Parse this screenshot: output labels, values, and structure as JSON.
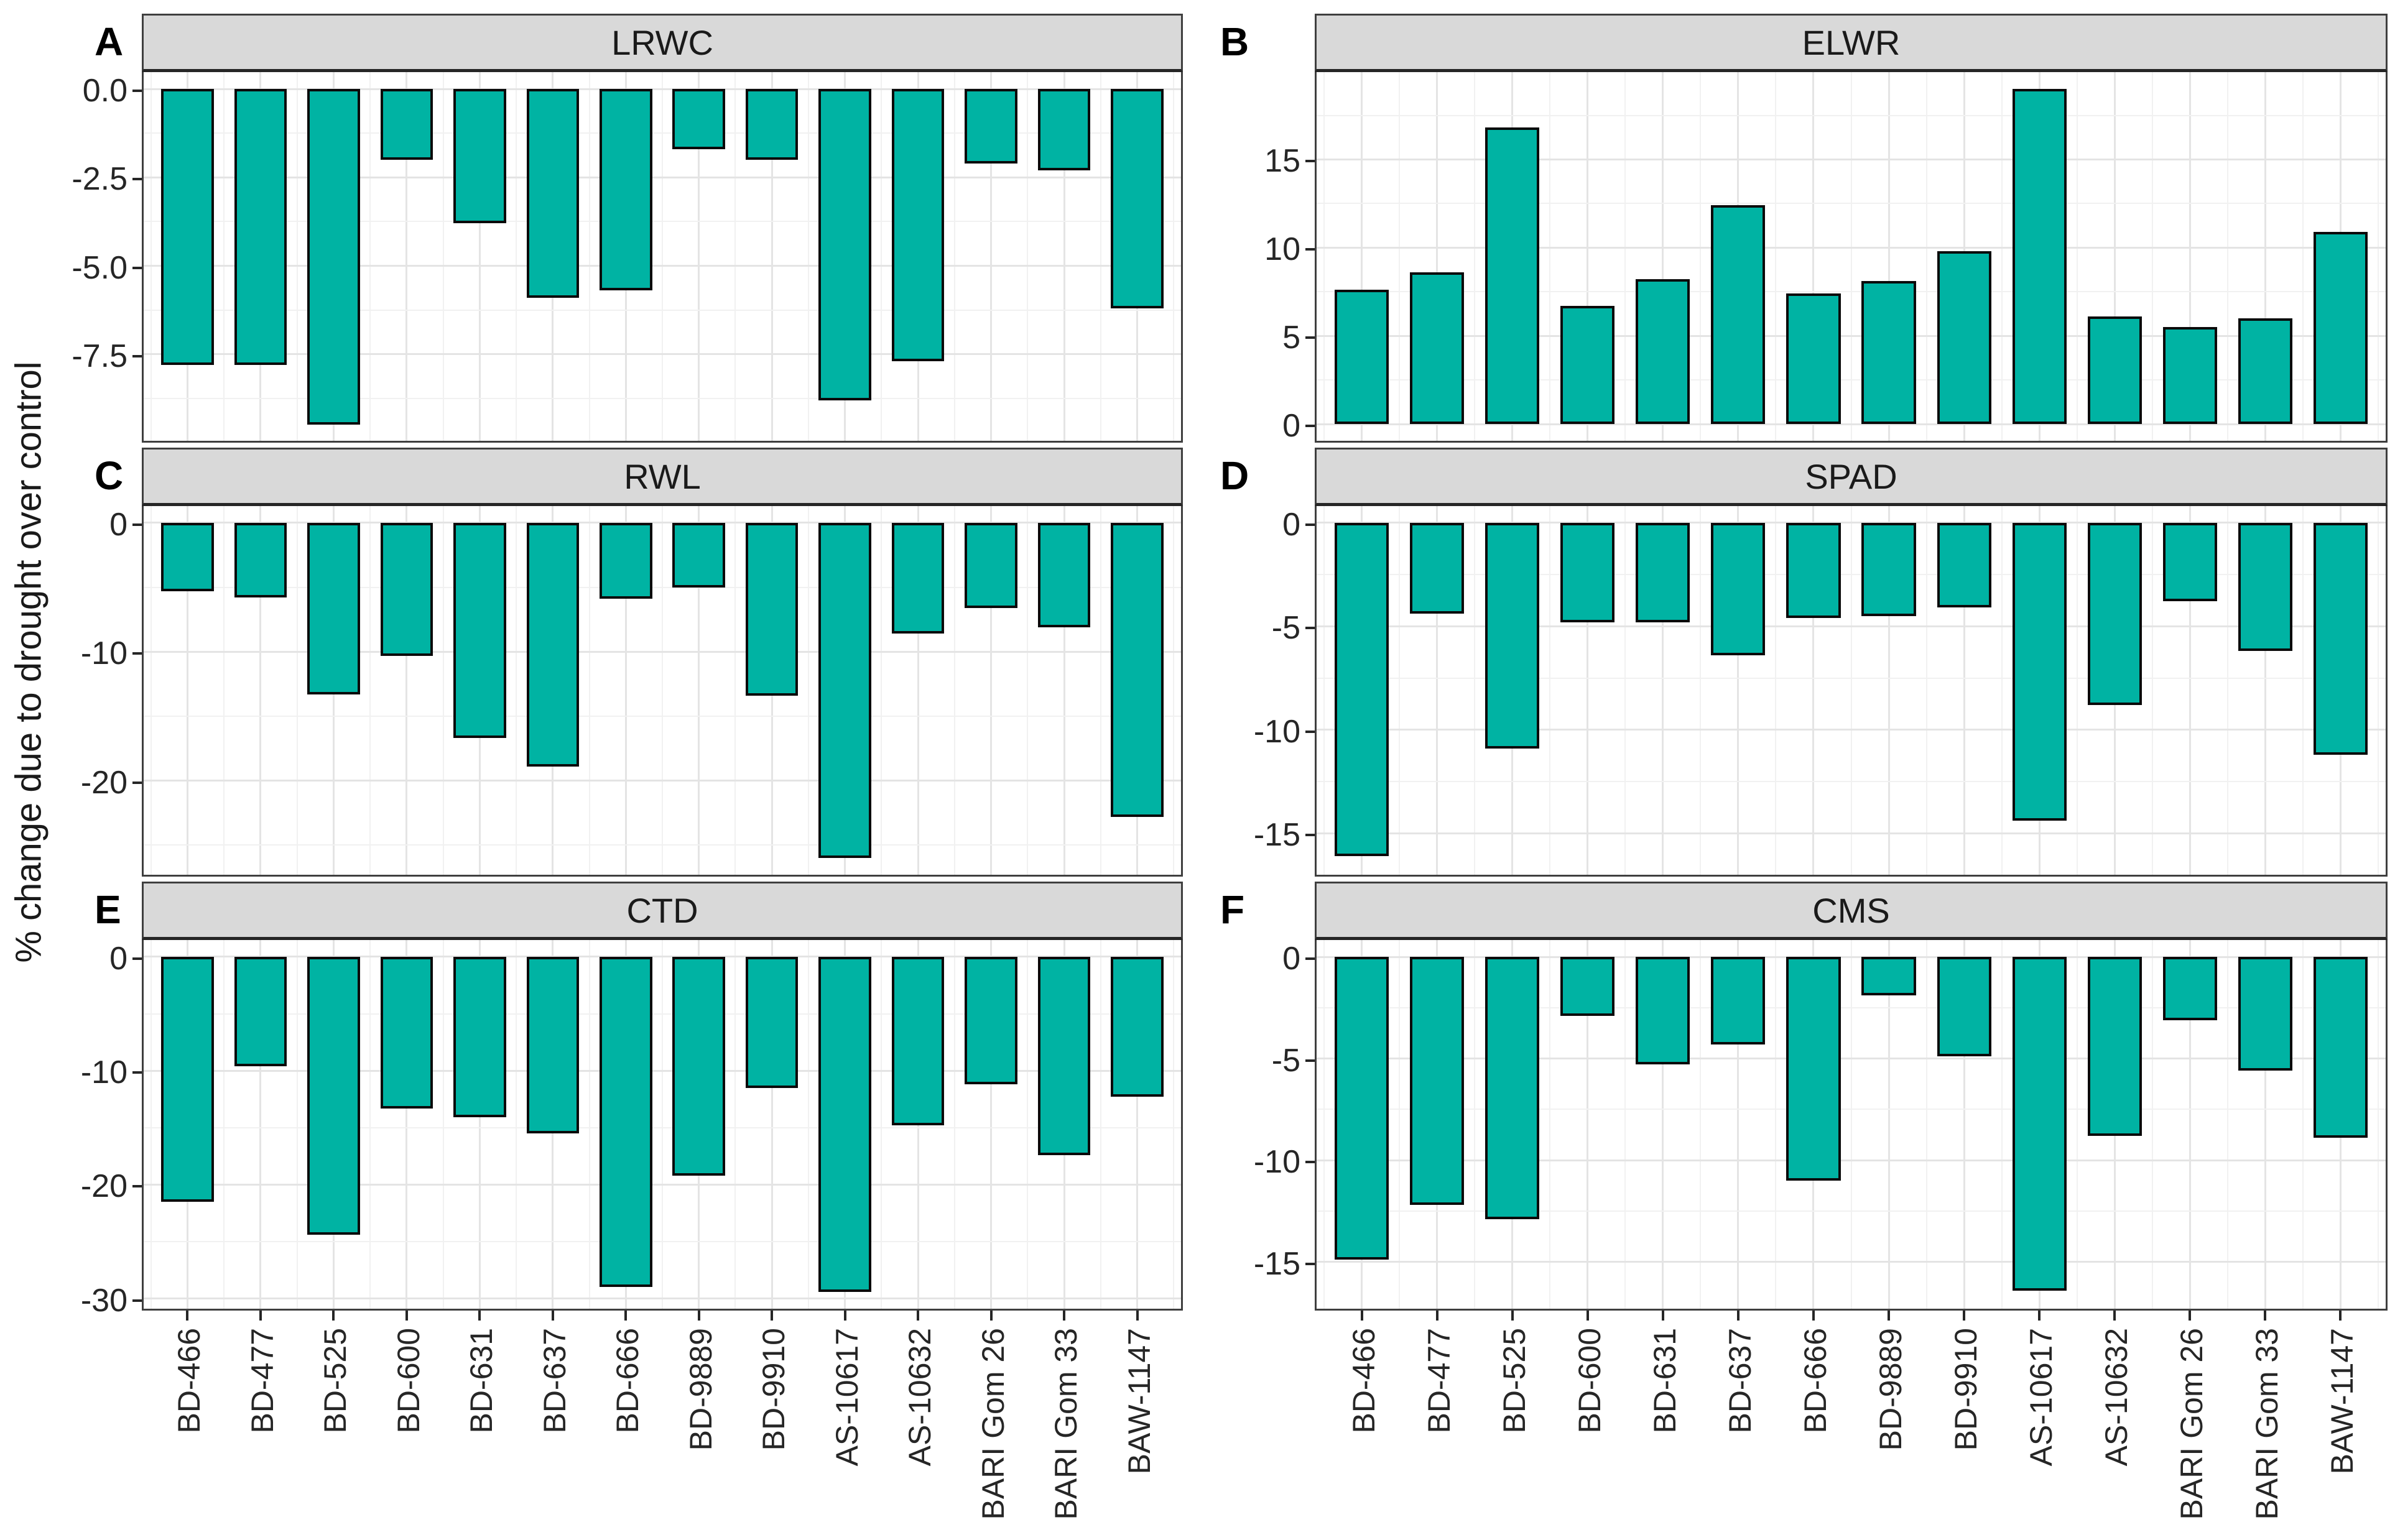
{
  "ylabel": "% change due to drought over control",
  "colors": {
    "bar_fill": "#00b3a3",
    "bar_border": "#0a0a0a",
    "strip_bg": "#d9d9d9",
    "border": "#3f3f3f",
    "grid_major": "#e4e4e4",
    "grid_minor": "#f1f1f1",
    "tick": "#262626",
    "text": "#1a1a1a"
  },
  "chart_data": {
    "type": "bar",
    "layout": "6 facet panels (2 columns x 3 rows), shared categories, vertical bars from 0",
    "ylabel": "% change due to drought over control",
    "xlabel": "",
    "legend": "none",
    "grid": "on",
    "bar_color": "#00b3a3",
    "categories": [
      "BD-466",
      "BD-477",
      "BD-525",
      "BD-600",
      "BD-631",
      "BD-637",
      "BD-666",
      "BD-9889",
      "BD-9910",
      "AS-10617",
      "AS-10632",
      "BARI Gom 26",
      "BARI Gom 33",
      "BAW-1147"
    ],
    "panels": [
      {
        "letter": "A",
        "title": "LRWC",
        "ylim": [
          -9.95,
          0.48
        ],
        "yticks": [
          0,
          -2.5,
          -5,
          -7.5
        ],
        "ytick_labels": [
          "0.0",
          "-2.5",
          "-5.0",
          "-7.5"
        ],
        "values": [
          -7.8,
          -7.8,
          -9.5,
          -2.0,
          -3.8,
          -5.9,
          -5.7,
          -1.7,
          -2.0,
          -8.8,
          -7.7,
          -2.1,
          -2.3,
          -6.2
        ]
      },
      {
        "letter": "B",
        "title": "ELWR",
        "ylim": [
          -0.95,
          19.95
        ],
        "yticks": [
          15,
          10,
          5,
          0
        ],
        "ytick_labels": [
          "15",
          "10",
          "5",
          "0"
        ],
        "values": [
          7.6,
          8.6,
          16.8,
          6.7,
          8.2,
          12.4,
          7.4,
          8.1,
          9.8,
          19.0,
          6.1,
          5.5,
          6.0,
          10.9
        ]
      },
      {
        "letter": "C",
        "title": "RWL",
        "ylim": [
          -27.3,
          1.3
        ],
        "yticks": [
          0,
          -10,
          -20
        ],
        "ytick_labels": [
          "0",
          "-10",
          "-20"
        ],
        "values": [
          -5.3,
          -5.8,
          -13.3,
          -10.3,
          -16.7,
          -18.9,
          -5.9,
          -5.0,
          -13.4,
          -26.0,
          -8.6,
          -6.6,
          -8.1,
          -22.8
        ]
      },
      {
        "letter": "D",
        "title": "SPAD",
        "ylim": [
          -17.0,
          0.81
        ],
        "yticks": [
          0,
          -5,
          -10,
          -15
        ],
        "ytick_labels": [
          "0",
          "-5",
          "-10",
          "-15"
        ],
        "values": [
          -16.1,
          -4.4,
          -10.9,
          -4.8,
          -4.8,
          -6.4,
          -4.6,
          -4.5,
          -4.1,
          -14.4,
          -8.8,
          -3.8,
          -6.2,
          -11.2
        ]
      },
      {
        "letter": "E",
        "title": "CTD",
        "ylim": [
          -30.9,
          1.47
        ],
        "yticks": [
          0,
          -10,
          -20,
          -30
        ],
        "ytick_labels": [
          "0",
          "-10",
          "-20",
          "-30"
        ],
        "values": [
          -21.5,
          -9.6,
          -24.4,
          -13.3,
          -14.1,
          -15.5,
          -29.0,
          -19.2,
          -11.5,
          -29.4,
          -14.8,
          -11.2,
          -17.4,
          -12.3
        ]
      },
      {
        "letter": "F",
        "title": "CMS",
        "ylim": [
          -17.3,
          0.83
        ],
        "yticks": [
          0,
          -5,
          -10,
          -15
        ],
        "ytick_labels": [
          "0",
          "-5",
          "-10",
          "-15"
        ],
        "values": [
          -14.9,
          -12.2,
          -12.9,
          -2.9,
          -5.3,
          -4.3,
          -11.0,
          -1.9,
          -4.9,
          -16.4,
          -8.8,
          -3.1,
          -5.6,
          -8.9
        ]
      }
    ]
  }
}
